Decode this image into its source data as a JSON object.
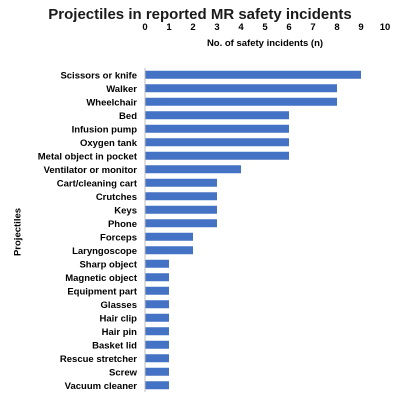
{
  "chart_data": {
    "type": "bar",
    "orientation": "horizontal",
    "title": "Projectiles in reported MR safety incidents",
    "xlabel": "No. of safety incidents (n)",
    "ylabel": "Projectiles",
    "xlim": [
      0,
      10
    ],
    "x_ticks": [
      "0",
      "1",
      "2",
      "3",
      "4",
      "5",
      "6",
      "7",
      "8",
      "9",
      "10"
    ],
    "x_axis_position": "top",
    "grid": false,
    "legend": "none",
    "bar_color": "#4472C4",
    "categories": [
      "Scissors or knife",
      "Walker",
      "Wheelchair",
      "Bed",
      "Infusion pump",
      "Oxygen tank",
      "Metal object in pocket",
      "Ventilator or monitor",
      "Cart/cleaning cart",
      "Crutches",
      "Keys",
      "Phone",
      "Forceps",
      "Laryngoscope",
      "Sharp object",
      "Magnetic object",
      "Equipment part",
      "Glasses",
      "Hair clip",
      "Hair pin",
      "Basket lid",
      "Rescue stretcher",
      "Screw",
      "Vacuum cleaner"
    ],
    "values": [
      9,
      8,
      8,
      6,
      6,
      6,
      6,
      4,
      3,
      3,
      3,
      3,
      2,
      2,
      1,
      1,
      1,
      1,
      1,
      1,
      1,
      1,
      1,
      1
    ]
  }
}
